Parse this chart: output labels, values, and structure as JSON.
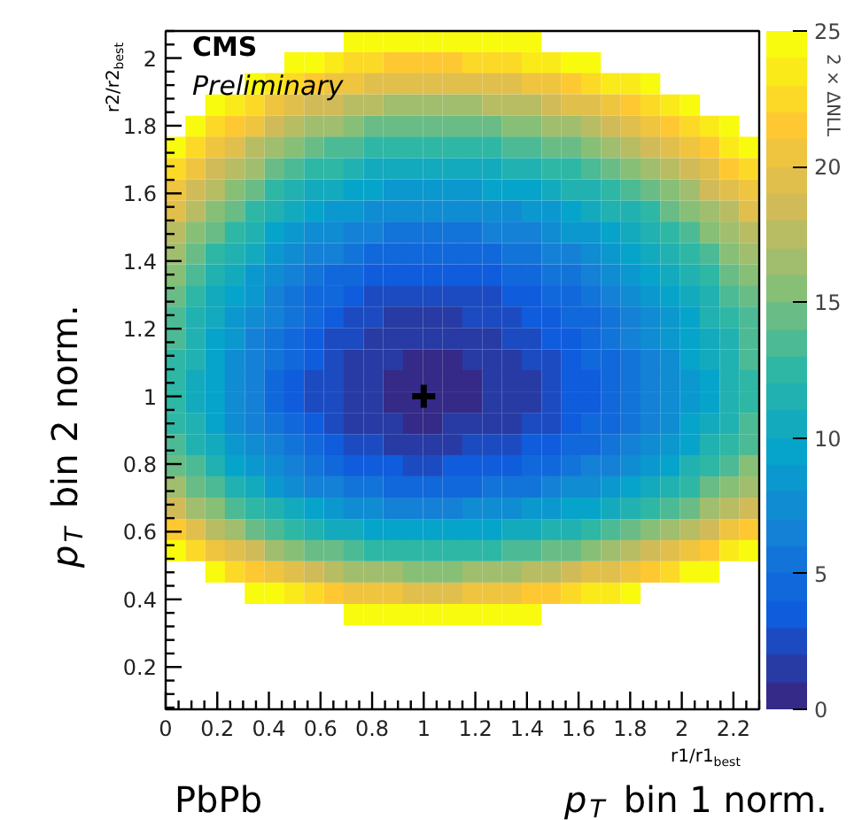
{
  "chart_data": {
    "type": "heatmap",
    "xlabel": "r1/r1$_{best}$",
    "ylabel": "r2/r2$_{best}$",
    "clabel": "2 × ΔNLL",
    "annotations": [
      "CMS",
      "Preliminary",
      "PbPb",
      "p$_{T}$ bin 1 norm.",
      "p$_{T}$ bin 2 norm."
    ],
    "xlim": [
      0,
      2.3
    ],
    "ylim": [
      0.075,
      2.08
    ],
    "xticks": [
      0,
      0.2,
      0.4,
      0.6,
      0.8,
      1,
      1.2,
      1.4,
      1.6,
      1.8,
      2,
      2.2
    ],
    "yticks": [
      0.2,
      0.4,
      0.6,
      0.8,
      1,
      1.2,
      1.4,
      1.6,
      1.8,
      2
    ],
    "clim": [
      0,
      25
    ],
    "cticks": [
      0,
      5,
      10,
      15,
      20,
      25
    ],
    "grid": false,
    "x": [
      0.038,
      0.115,
      0.192,
      0.268,
      0.345,
      0.422,
      0.498,
      0.575,
      0.652,
      0.728,
      0.805,
      0.882,
      0.958,
      1.035,
      1.112,
      1.188,
      1.265,
      1.342,
      1.418,
      1.495,
      1.572,
      1.648,
      1.725,
      1.802,
      1.878,
      1.955,
      2.032,
      2.108,
      2.185,
      2.262
    ],
    "y": [
      2.049,
      1.986,
      1.924,
      1.861,
      1.798,
      1.736,
      1.673,
      1.61,
      1.547,
      1.485,
      1.422,
      1.359,
      1.297,
      1.234,
      1.171,
      1.108,
      1.046,
      0.983,
      0.92,
      0.857,
      0.795,
      0.732,
      0.669,
      0.606,
      0.544,
      0.481,
      0.418,
      0.355
    ],
    "cells": [
      [
        null,
        null,
        null,
        null,
        null,
        null,
        null,
        null,
        null,
        25,
        24,
        24,
        24,
        24,
        24,
        24,
        24,
        24,
        25,
        null,
        null,
        null,
        null,
        null,
        null,
        null,
        null,
        null,
        null,
        null
      ],
      [
        null,
        null,
        null,
        null,
        null,
        null,
        25,
        24,
        23,
        22,
        22,
        21,
        21,
        21,
        21,
        22,
        22,
        22,
        23,
        23,
        24,
        24,
        null,
        null,
        null,
        null,
        null,
        null,
        null,
        null
      ],
      [
        null,
        null,
        null,
        null,
        24,
        23,
        22,
        21,
        20,
        20,
        19,
        19,
        19,
        19,
        19,
        19,
        19,
        19,
        20,
        20,
        21,
        22,
        23,
        23,
        24,
        null,
        null,
        null,
        null,
        null
      ],
      [
        null,
        null,
        25,
        23,
        22,
        20,
        19,
        18,
        18,
        17,
        17,
        16,
        16,
        16,
        16,
        16,
        17,
        17,
        17,
        18,
        19,
        19,
        20,
        21,
        22,
        23,
        24,
        null,
        null,
        null
      ],
      [
        null,
        24,
        22,
        21,
        20,
        18,
        17,
        16,
        16,
        15,
        14,
        14,
        14,
        14,
        14,
        14,
        14,
        15,
        15,
        16,
        16,
        17,
        18,
        19,
        20,
        21,
        22,
        23,
        25,
        null
      ],
      [
        24,
        22,
        20,
        19,
        17,
        16,
        15,
        14,
        13,
        13,
        12,
        12,
        12,
        12,
        12,
        12,
        12,
        13,
        13,
        14,
        14,
        15,
        16,
        17,
        18,
        19,
        20,
        21,
        23,
        24
      ],
      [
        22,
        20,
        18,
        17,
        16,
        14,
        13,
        12,
        12,
        11,
        10,
        10,
        10,
        10,
        10,
        10,
        10,
        11,
        11,
        12,
        12,
        13,
        14,
        15,
        16,
        17,
        18,
        19,
        21,
        22
      ],
      [
        20,
        18,
        17,
        15,
        14,
        12,
        11,
        10,
        10,
        9,
        9,
        8,
        8,
        8,
        8,
        8,
        9,
        9,
        9,
        10,
        11,
        11,
        12,
        13,
        14,
        15,
        16,
        18,
        19,
        20
      ],
      [
        19,
        17,
        15,
        14,
        12,
        11,
        10,
        9,
        8,
        8,
        7,
        7,
        7,
        7,
        7,
        7,
        7,
        7,
        8,
        8,
        9,
        10,
        11,
        11,
        12,
        14,
        15,
        16,
        17,
        19
      ],
      [
        17,
        15,
        14,
        12,
        11,
        9,
        8,
        7,
        7,
        6,
        6,
        5,
        5,
        5,
        5,
        5,
        6,
        6,
        6,
        7,
        8,
        8,
        9,
        10,
        11,
        12,
        13,
        15,
        16,
        17
      ],
      [
        16,
        14,
        12,
        11,
        10,
        8,
        7,
        6,
        6,
        5,
        4,
        4,
        4,
        4,
        4,
        4,
        4,
        5,
        5,
        6,
        6,
        7,
        8,
        9,
        10,
        11,
        12,
        13,
        15,
        16
      ],
      [
        15,
        13,
        11,
        10,
        8,
        7,
        6,
        5,
        4,
        4,
        3,
        3,
        3,
        3,
        3,
        3,
        3,
        4,
        4,
        5,
        5,
        6,
        7,
        8,
        9,
        10,
        11,
        12,
        14,
        15
      ],
      [
        14,
        12,
        10,
        9,
        8,
        6,
        5,
        4,
        4,
        3,
        2,
        2,
        2,
        2,
        2,
        2,
        2,
        3,
        3,
        4,
        4,
        5,
        6,
        7,
        8,
        9,
        10,
        11,
        13,
        14
      ],
      [
        13,
        11,
        10,
        8,
        7,
        6,
        5,
        4,
        3,
        2,
        2,
        1,
        1,
        1,
        1,
        2,
        2,
        2,
        3,
        3,
        4,
        4,
        5,
        6,
        7,
        8,
        9,
        11,
        12,
        13
      ],
      [
        13,
        11,
        9,
        8,
        6,
        5,
        4,
        3,
        2,
        2,
        1,
        1,
        1,
        1,
        1,
        1,
        1,
        2,
        2,
        3,
        3,
        4,
        5,
        6,
        7,
        8,
        9,
        10,
        11,
        13
      ],
      [
        12,
        11,
        9,
        7,
        6,
        5,
        4,
        3,
        2,
        1,
        1,
        1,
        0,
        0,
        0,
        1,
        1,
        1,
        2,
        2,
        3,
        4,
        4,
        5,
        6,
        7,
        9,
        10,
        11,
        13
      ],
      [
        12,
        10,
        9,
        7,
        6,
        4,
        3,
        2,
        2,
        1,
        1,
        0,
        0,
        0,
        0,
        0,
        1,
        1,
        1,
        2,
        3,
        3,
        4,
        5,
        6,
        7,
        8,
        9,
        11,
        12
      ],
      [
        12,
        10,
        9,
        7,
        6,
        4,
        3,
        2,
        2,
        1,
        1,
        0,
        0,
        0,
        0,
        0,
        1,
        1,
        1,
        2,
        3,
        3,
        4,
        5,
        6,
        7,
        8,
        9,
        11,
        12
      ],
      [
        12,
        11,
        9,
        7,
        6,
        5,
        4,
        3,
        2,
        1,
        1,
        1,
        0,
        0,
        1,
        1,
        1,
        1,
        2,
        2,
        3,
        4,
        4,
        5,
        6,
        7,
        9,
        10,
        11,
        13
      ],
      [
        13,
        11,
        10,
        8,
        7,
        6,
        5,
        4,
        3,
        2,
        2,
        1,
        1,
        1,
        1,
        2,
        2,
        2,
        3,
        3,
        4,
        4,
        5,
        6,
        7,
        8,
        9,
        11,
        12,
        13
      ],
      [
        14,
        13,
        11,
        9,
        8,
        7,
        6,
        5,
        4,
        3,
        3,
        3,
        2,
        2,
        3,
        3,
        3,
        3,
        4,
        4,
        5,
        6,
        6,
        7,
        8,
        9,
        11,
        12,
        13,
        15
      ],
      [
        16,
        14,
        13,
        11,
        10,
        8,
        7,
        6,
        6,
        5,
        5,
        4,
        4,
        4,
        4,
        4,
        5,
        5,
        5,
        6,
        7,
        7,
        8,
        9,
        10,
        11,
        12,
        14,
        15,
        16
      ],
      [
        18,
        16,
        15,
        13,
        12,
        11,
        10,
        9,
        8,
        7,
        7,
        6,
        6,
        6,
        6,
        7,
        7,
        7,
        8,
        8,
        9,
        9,
        10,
        11,
        12,
        13,
        14,
        16,
        17,
        18
      ],
      [
        21,
        19,
        17,
        16,
        14,
        13,
        12,
        11,
        10,
        10,
        9,
        9,
        9,
        9,
        9,
        9,
        9,
        10,
        10,
        11,
        11,
        12,
        13,
        14,
        15,
        16,
        17,
        18,
        20,
        21
      ],
      [
        24,
        22,
        20,
        19,
        18,
        16,
        15,
        14,
        14,
        13,
        12,
        12,
        12,
        12,
        12,
        12,
        12,
        13,
        13,
        14,
        14,
        15,
        16,
        17,
        18,
        19,
        20,
        21,
        23,
        24
      ],
      [
        null,
        null,
        24,
        22,
        21,
        20,
        19,
        18,
        17,
        16,
        16,
        16,
        15,
        15,
        15,
        16,
        16,
        16,
        17,
        17,
        18,
        19,
        19,
        20,
        21,
        22,
        24,
        25,
        null,
        null
      ],
      [
        null,
        null,
        null,
        null,
        25,
        24,
        23,
        22,
        21,
        20,
        20,
        20,
        19,
        19,
        19,
        20,
        20,
        20,
        21,
        21,
        22,
        23,
        23,
        24,
        null,
        null,
        null,
        null,
        null,
        null
      ],
      [
        null,
        null,
        null,
        null,
        null,
        null,
        null,
        null,
        null,
        25,
        24,
        24,
        24,
        24,
        24,
        24,
        24,
        25,
        25,
        null,
        null,
        null,
        null,
        null,
        null,
        null,
        null,
        null,
        null,
        null
      ]
    ],
    "series": [
      {
        "type": "scatter",
        "marker": "cross",
        "color": "#000000",
        "x": [
          1
        ],
        "values": [
          1
        ]
      }
    ]
  }
}
